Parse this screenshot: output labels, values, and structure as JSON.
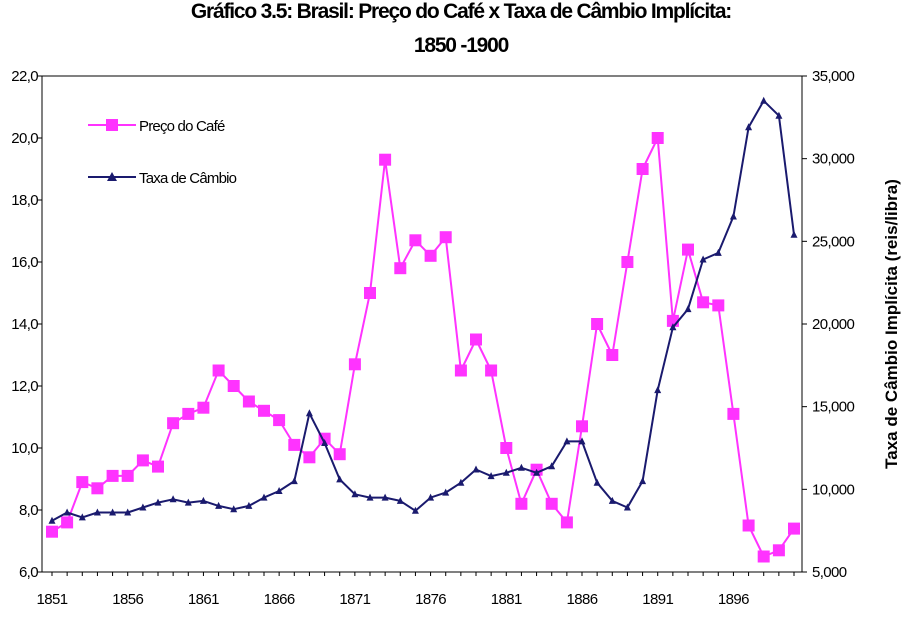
{
  "chart_data": {
    "type": "line",
    "title": "Gráfico 3.5: Brasil: Preço do Café x Taxa de Câmbio Implícita:",
    "subtitle": "1850 -1900",
    "xlabel": "",
    "ylabel": "",
    "y2label": "Taxa de Câmbio Implícita (reis/libra)",
    "x": [
      1851,
      1852,
      1853,
      1854,
      1855,
      1856,
      1857,
      1858,
      1859,
      1860,
      1861,
      1862,
      1863,
      1864,
      1865,
      1866,
      1867,
      1868,
      1869,
      1870,
      1871,
      1872,
      1873,
      1874,
      1875,
      1876,
      1877,
      1878,
      1879,
      1880,
      1881,
      1882,
      1883,
      1884,
      1885,
      1886,
      1887,
      1888,
      1889,
      1890,
      1891,
      1892,
      1893,
      1894,
      1895,
      1896,
      1897,
      1898,
      1899,
      1900
    ],
    "xticks": [
      "1851",
      "1856",
      "1861",
      "1866",
      "1871",
      "1876",
      "1881",
      "1886",
      "1891",
      "1896"
    ],
    "ylim": [
      6.0,
      22.0
    ],
    "yticks": [
      "6,0",
      "8,0",
      "10,0",
      "12,0",
      "14,0",
      "16,0",
      "18,0",
      "20,0",
      "22,0"
    ],
    "y2lim": [
      5000,
      35000
    ],
    "y2ticks": [
      "5,000",
      "10,000",
      "15,000",
      "20,000",
      "25,000",
      "30,000",
      "35,000"
    ],
    "legend_position": "top-left",
    "grid": false,
    "series": [
      {
        "name": "Preço do Café",
        "axis": "left",
        "color": "#ff33ff",
        "marker": "square",
        "values": [
          7.3,
          7.6,
          8.9,
          8.7,
          9.1,
          9.1,
          9.6,
          9.4,
          10.8,
          11.1,
          11.3,
          12.5,
          12.0,
          11.5,
          11.2,
          10.9,
          10.1,
          9.7,
          10.3,
          9.8,
          12.7,
          15.0,
          19.3,
          15.8,
          16.7,
          16.2,
          16.8,
          12.5,
          13.5,
          12.5,
          10.0,
          8.2,
          9.3,
          8.2,
          7.6,
          10.7,
          14.0,
          13.0,
          16.0,
          19.0,
          20.0,
          14.1,
          16.4,
          14.7,
          14.6,
          11.1,
          7.5,
          6.5,
          6.7,
          7.4
        ]
      },
      {
        "name": "Taxa de Câmbio",
        "axis": "right",
        "color": "#1a1a6e",
        "marker": "triangle",
        "values": [
          8100,
          8600,
          8300,
          8600,
          8600,
          8600,
          8900,
          9200,
          9400,
          9200,
          9300,
          9000,
          8800,
          9000,
          9500,
          9900,
          10500,
          14600,
          12800,
          10600,
          9700,
          9500,
          9500,
          9300,
          8700,
          9500,
          9800,
          10400,
          11200,
          10800,
          11000,
          11300,
          11000,
          11400,
          12900,
          12900,
          10400,
          9300,
          8900,
          10500,
          16000,
          19800,
          20900,
          23900,
          24300,
          26500,
          31900,
          33500,
          32600,
          25400
        ]
      }
    ]
  }
}
